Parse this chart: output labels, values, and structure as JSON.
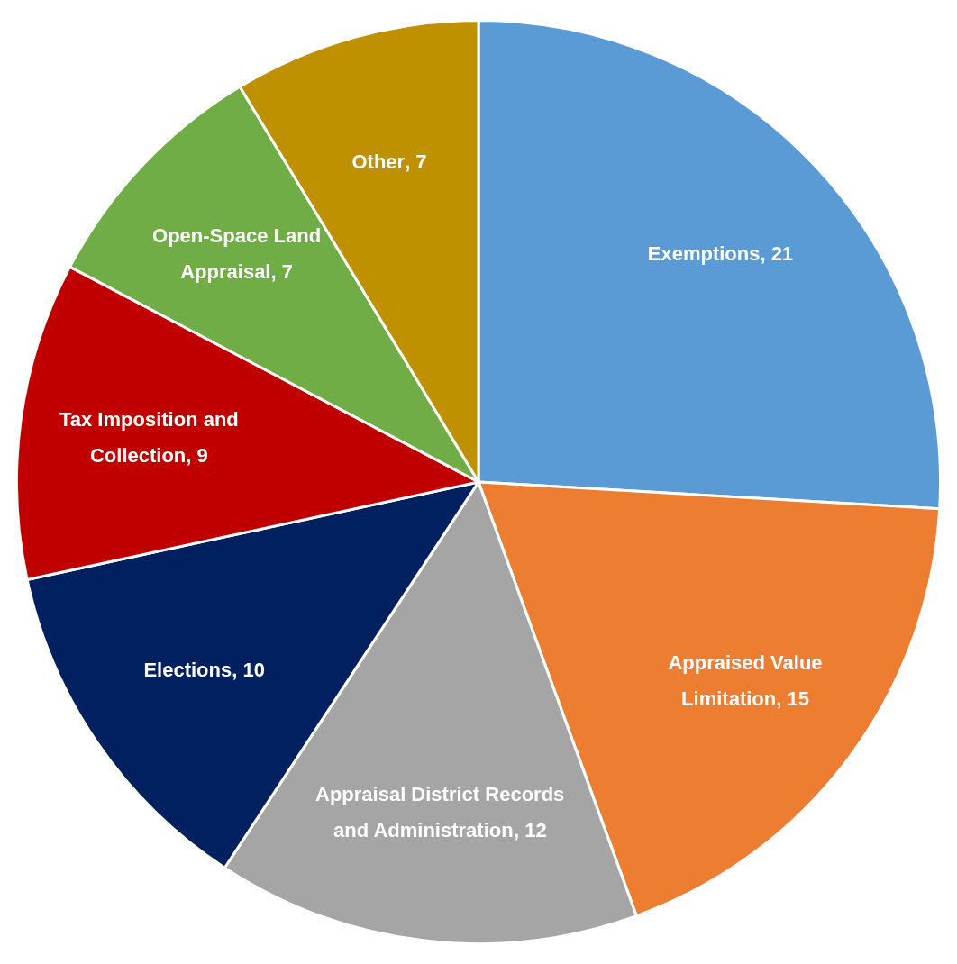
{
  "chart_data": {
    "type": "pie",
    "categories": [
      "Exemptions",
      "Appraised Value Limitation",
      "Appraisal District Records and Administration",
      "Elections",
      "Tax Imposition and Collection",
      "Open-Space Land Appraisal",
      "Other"
    ],
    "values": [
      21,
      15,
      12,
      10,
      9,
      7,
      7
    ],
    "colors": [
      "#5b9bd5",
      "#ed7d31",
      "#a5a5a5",
      "#002060",
      "#c00000",
      "#70ad47",
      "#bf9000"
    ],
    "value_labels": [
      ", 21",
      ", 15",
      ", 12",
      ", 10",
      ", 9",
      ", 7",
      ", 7"
    ],
    "legend": false
  }
}
